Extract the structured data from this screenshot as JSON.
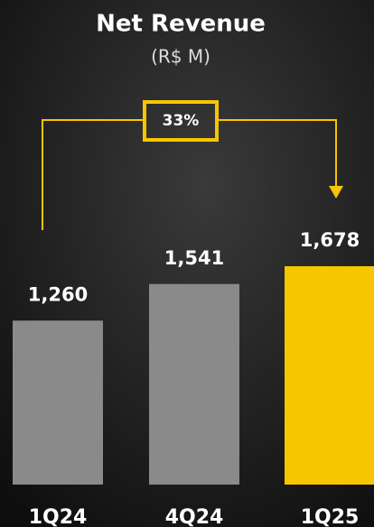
{
  "chart_data": {
    "type": "bar",
    "title": "Net Revenue",
    "subtitle": "(R$ M)",
    "categories": [
      "1Q24",
      "4Q24",
      "1Q25"
    ],
    "values": [
      1260,
      1541,
      1678
    ],
    "value_labels": [
      "1,260",
      "1,541",
      "1,678"
    ],
    "colors": [
      "#8a8a8a",
      "#8a8a8a",
      "#f7c600"
    ],
    "annotation": "33%"
  }
}
